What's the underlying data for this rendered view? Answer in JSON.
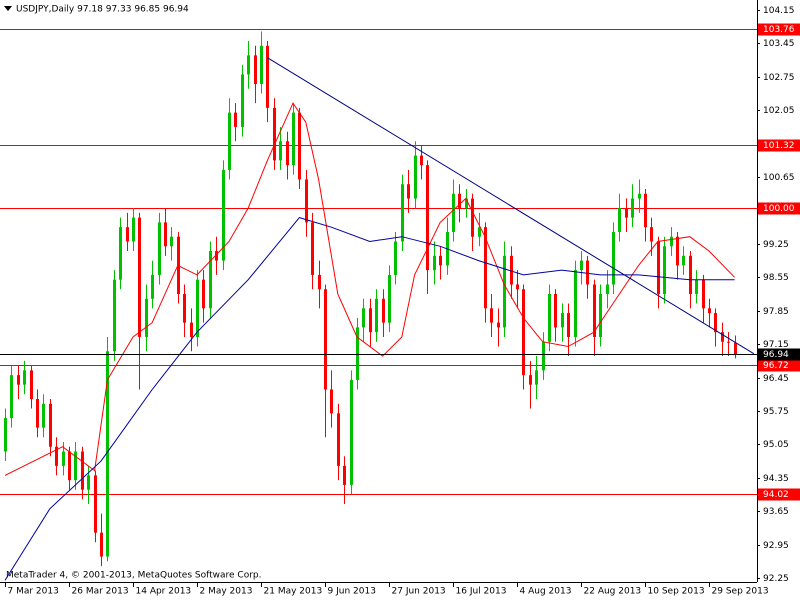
{
  "chart_data": {
    "type": "candlestick",
    "title": "USDJPY,Daily  97.18 97.33 96.85 96.94",
    "footer": "MetaTrader 4, © 2001-2013, MetaQuotes Software Corp.",
    "categories": [
      "7 Mar 2013",
      null,
      null,
      null,
      null,
      null,
      null,
      null,
      null,
      null,
      "26 Mar 2013",
      null,
      null,
      null,
      null,
      null,
      null,
      null,
      null,
      null,
      "14 Apr 2013",
      null,
      null,
      null,
      null,
      null,
      null,
      null,
      null,
      null,
      "2 May 2013",
      null,
      null,
      null,
      null,
      null,
      null,
      null,
      null,
      null,
      "21 May 2013",
      null,
      null,
      null,
      null,
      null,
      null,
      null,
      null,
      null,
      "9 Jun 2013",
      null,
      null,
      null,
      null,
      null,
      null,
      null,
      null,
      null,
      "27 Jun 2013",
      null,
      null,
      null,
      null,
      null,
      null,
      null,
      null,
      null,
      "16 Jul 2013",
      null,
      null,
      null,
      null,
      null,
      null,
      null,
      null,
      null,
      "4 Aug 2013",
      null,
      null,
      null,
      null,
      null,
      null,
      null,
      null,
      null,
      "22 Aug 2013",
      null,
      null,
      null,
      null,
      null,
      null,
      null,
      null,
      null,
      "10 Sep 2013",
      null,
      null,
      null,
      null,
      null,
      null,
      null,
      null,
      null,
      "29 Sep 2013",
      null,
      null,
      null,
      null
    ],
    "open": [
      94.9,
      95.6,
      96.5,
      96.3,
      96.6,
      96.0,
      95.4,
      95.9,
      95.0,
      94.6,
      94.9,
      94.3,
      94.9,
      94.1,
      94.4,
      93.2,
      92.7,
      97.0,
      98.5,
      99.6,
      99.3,
      99.8,
      97.3,
      98.1,
      98.6,
      99.7,
      99.2,
      99.4,
      98.2,
      97.6,
      97.3,
      98.5,
      97.9,
      99.1,
      98.9,
      100.8,
      102.0,
      101.7,
      102.8,
      103.2,
      102.6,
      103.4,
      102.1,
      101.0,
      101.4,
      100.9,
      102.0,
      100.6,
      99.7,
      98.6,
      98.3,
      96.2,
      95.7,
      94.6,
      94.2,
      96.4,
      97.5,
      97.9,
      97.4,
      98.1,
      97.6,
      98.6,
      99.3,
      100.5,
      100.2,
      101.1,
      100.9,
      98.7,
      99.0,
      98.8,
      99.5,
      100.3,
      100.0,
      100.2,
      99.4,
      99.6,
      97.9,
      97.6,
      97.5,
      99.0,
      98.4,
      98.3,
      96.5,
      96.3,
      96.6,
      97.2,
      98.2,
      97.5,
      97.8,
      97.3,
      98.7,
      98.9,
      98.4,
      97.3,
      98.2,
      98.4,
      99.5,
      100.0,
      99.8,
      100.2,
      100.3,
      99.6,
      99.3,
      98.2,
      99.2,
      99.4,
      98.8,
      99.0,
      98.2,
      98.5,
      97.9,
      97.8,
      97.4,
      97.2,
      97.18
    ],
    "high": [
      95.8,
      96.7,
      96.7,
      96.8,
      96.7,
      96.2,
      96.1,
      96.0,
      95.2,
      95.1,
      95.0,
      95.1,
      95.0,
      94.6,
      94.5,
      93.6,
      97.3,
      98.7,
      99.8,
      99.9,
      100.0,
      99.9,
      98.4,
      98.9,
      99.9,
      100.0,
      99.6,
      99.5,
      98.4,
      97.9,
      98.7,
      98.7,
      99.3,
      99.4,
      101.0,
      102.3,
      102.2,
      103.0,
      103.5,
      103.4,
      103.7,
      103.5,
      102.3,
      101.7,
      101.6,
      102.2,
      102.1,
      100.8,
      99.9,
      98.9,
      98.4,
      96.6,
      95.9,
      94.8,
      96.6,
      97.7,
      98.1,
      98.1,
      98.3,
      98.3,
      98.8,
      99.5,
      100.7,
      100.8,
      101.4,
      101.3,
      101.0,
      99.3,
      99.2,
      99.8,
      100.6,
      100.5,
      100.4,
      100.3,
      99.9,
      99.7,
      98.2,
      97.9,
      99.3,
      99.2,
      98.7,
      98.4,
      96.8,
      96.9,
      97.4,
      98.4,
      98.3,
      98.0,
      98.0,
      98.9,
      99.1,
      99.0,
      98.5,
      98.4,
      98.7,
      99.7,
      100.3,
      100.2,
      100.5,
      100.6,
      100.4,
      99.8,
      99.4,
      99.4,
      99.6,
      99.5,
      99.2,
      99.1,
      98.7,
      98.6,
      98.1,
      97.9,
      97.6,
      97.4,
      97.33
    ],
    "low": [
      94.7,
      95.4,
      96.0,
      96.1,
      95.8,
      95.2,
      95.2,
      94.8,
      94.4,
      94.4,
      94.1,
      94.1,
      93.9,
      93.8,
      93.0,
      92.5,
      92.6,
      96.8,
      98.3,
      99.1,
      99.1,
      96.2,
      97.0,
      97.9,
      98.4,
      99.0,
      98.9,
      98.0,
      97.3,
      97.0,
      97.1,
      97.6,
      97.7,
      98.6,
      98.7,
      100.6,
      101.4,
      101.5,
      102.5,
      102.2,
      102.4,
      101.8,
      100.8,
      100.8,
      100.6,
      100.7,
      100.4,
      99.4,
      98.3,
      97.9,
      95.2,
      95.4,
      94.3,
      93.8,
      94.0,
      96.2,
      97.2,
      97.1,
      97.2,
      97.3,
      97.4,
      98.4,
      99.1,
      99.9,
      100.0,
      100.6,
      98.2,
      98.4,
      98.5,
      98.6,
      99.3,
      99.7,
      99.8,
      99.1,
      99.2,
      97.6,
      97.3,
      97.1,
      97.3,
      98.1,
      97.9,
      96.2,
      95.8,
      96.0,
      96.4,
      97.0,
      97.2,
      97.2,
      96.9,
      97.1,
      98.4,
      98.1,
      96.9,
      97.1,
      97.9,
      98.2,
      99.3,
      99.5,
      99.6,
      99.9,
      99.3,
      99.0,
      97.9,
      98.0,
      99.0,
      98.5,
      98.6,
      97.9,
      98.0,
      97.6,
      97.5,
      97.1,
      96.9,
      96.9,
      96.85
    ],
    "close": [
      95.6,
      96.5,
      96.3,
      96.6,
      96.0,
      95.4,
      95.9,
      95.0,
      94.6,
      94.9,
      94.3,
      94.9,
      94.1,
      94.4,
      93.2,
      92.7,
      97.0,
      98.5,
      99.6,
      99.3,
      99.8,
      97.3,
      98.1,
      98.6,
      99.7,
      99.2,
      99.4,
      98.2,
      97.6,
      97.3,
      98.5,
      97.9,
      99.1,
      98.9,
      100.8,
      102.0,
      101.7,
      102.8,
      103.2,
      102.6,
      103.4,
      102.1,
      101.0,
      101.4,
      100.9,
      102.0,
      100.6,
      99.7,
      98.6,
      98.3,
      96.2,
      95.7,
      94.6,
      94.2,
      96.4,
      97.5,
      97.9,
      97.4,
      98.1,
      97.6,
      98.6,
      99.3,
      100.5,
      100.2,
      101.1,
      100.9,
      98.7,
      99.0,
      98.8,
      99.5,
      100.3,
      100.0,
      100.2,
      99.4,
      99.6,
      97.9,
      97.6,
      97.5,
      99.0,
      98.4,
      98.3,
      96.5,
      96.3,
      96.6,
      97.2,
      98.2,
      97.5,
      97.8,
      97.3,
      98.7,
      98.9,
      98.4,
      97.3,
      98.2,
      98.4,
      99.5,
      100.0,
      99.8,
      100.2,
      100.3,
      99.6,
      99.3,
      98.2,
      99.2,
      99.4,
      98.8,
      99.0,
      98.2,
      98.5,
      97.9,
      97.8,
      97.4,
      97.2,
      97.18,
      96.94
    ],
    "up_color": "#00c000",
    "down_color": "#ff0000",
    "ylim": [
      92.25,
      104.15
    ],
    "yticks": [
      104.15,
      103.45,
      102.75,
      102.05,
      100.65,
      99.25,
      98.55,
      97.85,
      97.15,
      96.45,
      95.75,
      95.05,
      94.35,
      93.65,
      92.95,
      92.25
    ],
    "lines": [
      {
        "color": "#ff0000",
        "x": [
          0,
          9,
          14,
          16,
          20,
          23,
          27,
          30,
          35,
          38,
          41,
          45,
          47,
          49,
          52,
          55,
          59,
          62,
          64,
          68,
          72,
          75,
          78,
          81,
          84,
          88,
          92,
          95,
          99,
          102,
          107,
          110,
          114
        ],
        "values": [
          94.4,
          95.0,
          94.5,
          96.4,
          97.3,
          97.6,
          98.8,
          98.6,
          99.3,
          100.0,
          101.0,
          102.2,
          101.8,
          100.6,
          98.2,
          97.3,
          96.9,
          97.3,
          98.6,
          99.7,
          100.2,
          99.4,
          98.4,
          97.7,
          97.2,
          97.1,
          97.4,
          98.0,
          98.8,
          99.3,
          99.4,
          99.1,
          98.55
        ]
      },
      {
        "color": "#0000a0",
        "x": [
          0,
          7,
          15,
          23,
          30,
          38,
          46,
          51,
          57,
          62,
          68,
          74,
          81,
          87,
          93,
          99,
          107,
          114
        ],
        "values": [
          92.2,
          93.7,
          94.7,
          96.2,
          97.4,
          98.5,
          99.8,
          99.6,
          99.3,
          99.4,
          99.2,
          98.9,
          98.6,
          98.7,
          98.6,
          98.6,
          98.5,
          98.5
        ]
      },
      {
        "color": "#000080",
        "x": [
          41,
          117
        ],
        "values": [
          103.15,
          96.95
        ]
      }
    ],
    "levels": {
      "color": "#ff0000",
      "values": [
        103.76,
        101.32,
        {
          "value": 100,
          "label": "100.00"
        },
        96.72,
        94.02
      ]
    },
    "last_price": 96.94
  }
}
